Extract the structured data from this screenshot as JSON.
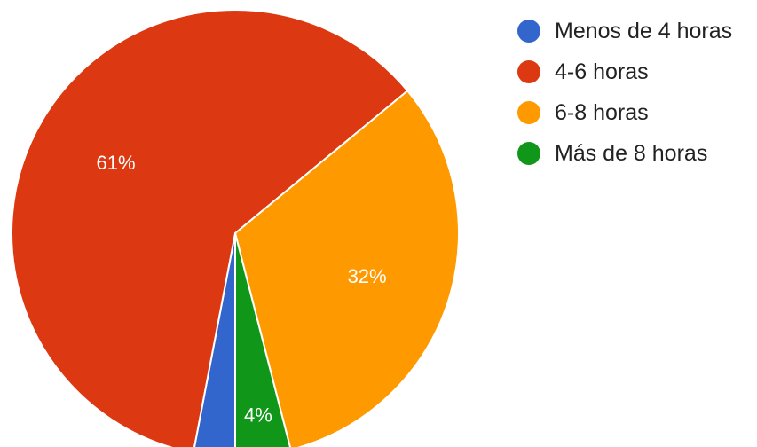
{
  "chart_data": {
    "type": "pie",
    "title": "",
    "categories": [
      "Menos de 4 horas",
      "4-6 horas",
      "6-8 horas",
      "Más de 8 horas"
    ],
    "values": [
      3,
      61,
      32,
      4
    ],
    "data_labels": [
      "",
      "61%",
      "32%",
      "4%"
    ],
    "colors": [
      "#3366cc",
      "#dc3912",
      "#ff9900",
      "#109618"
    ],
    "start_angle_deg": 90,
    "direction": "clockwise",
    "legend_position": "top-right"
  }
}
